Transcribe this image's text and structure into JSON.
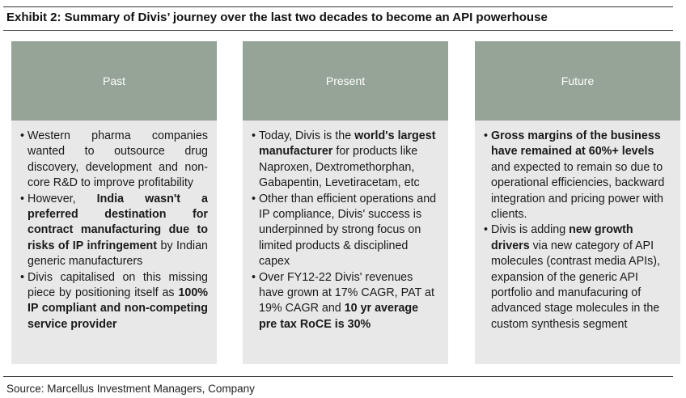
{
  "title": "Exhibit 2: Summary of Divis’ journey over the last two decades to become an API powerhouse",
  "source": "Source: Marcellus Investment Managers, Company",
  "columns": [
    {
      "heading": "Past",
      "bullets": [
        [
          {
            "t": "Western pharma companies wanted to outsource drug discovery, development and non-core R&D to improve profitability",
            "b": false
          }
        ],
        [
          {
            "t": "However, ",
            "b": false
          },
          {
            "t": "India wasn't a preferred destination for contract manufacturing due to risks of IP infringement",
            "b": true
          },
          {
            "t": " by Indian generic manufacturers",
            "b": false
          }
        ],
        [
          {
            "t": "Divis capitalised on this missing piece by positioning itself as ",
            "b": false
          },
          {
            "t": "100% IP compliant and non-competing service provider",
            "b": true
          }
        ]
      ]
    },
    {
      "heading": "Present",
      "bullets": [
        [
          {
            "t": "Today, Divis is the ",
            "b": false
          },
          {
            "t": "world's largest manufacturer",
            "b": true
          },
          {
            "t": " for products like Naproxen, Dextromethorphan, Gabapentin, Levetiracetam, etc",
            "b": false
          }
        ],
        [
          {
            "t": "Other than efficient operations and IP compliance, Divis' success is underpinned by strong focus on limited products & disciplined capex",
            "b": false
          }
        ],
        [
          {
            "t": "Over FY12-22 Divis' revenues have grown at 17% CAGR, PAT at 19% CAGR and ",
            "b": false
          },
          {
            "t": "10 yr average pre tax RoCE is 30%",
            "b": true
          }
        ]
      ]
    },
    {
      "heading": "Future",
      "bullets": [
        [
          {
            "t": "Gross margins of the business have remained at 60%+ levels",
            "b": true
          },
          {
            "t": " and expected to remain so due to operational efficiencies, backward integration and pricing power with clients.",
            "b": false
          }
        ],
        [
          {
            "t": "Divis is adding ",
            "b": false
          },
          {
            "t": "new growth drivers",
            "b": true
          },
          {
            "t": " via new category of API molecules (contrast media APIs), expansion of the generic API portfolio and manufacuring of advanced stage molecules in the custom synthesis segment",
            "b": false
          }
        ]
      ]
    }
  ]
}
